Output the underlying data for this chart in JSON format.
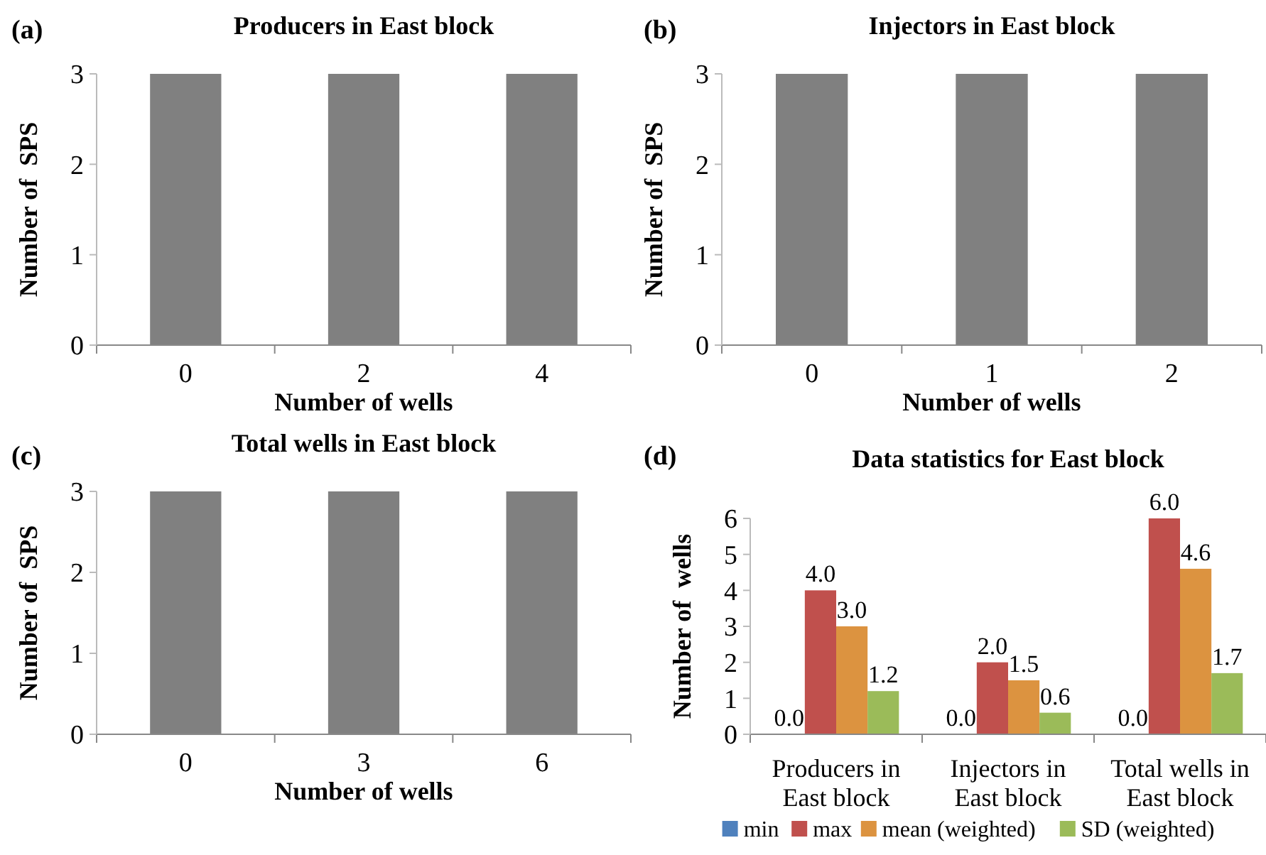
{
  "chart_data": [
    {
      "type": "bar",
      "title": "Producers in East block",
      "annotations": [
        "(a)"
      ],
      "xlabel": "Number of wells",
      "ylabel": "Number of  SPS",
      "categories": [
        "0",
        "2",
        "4"
      ],
      "values": [
        3,
        3,
        3
      ],
      "color": "#808080",
      "ylim": [
        0,
        3
      ],
      "yticks": [
        0,
        1,
        2,
        3
      ],
      "grid": false,
      "legend": false
    },
    {
      "type": "bar",
      "title": "Injectors in East block",
      "annotations": [
        "(b)"
      ],
      "xlabel": "Number of wells",
      "ylabel": "Number of  SPS",
      "categories": [
        "0",
        "1",
        "2"
      ],
      "values": [
        3,
        3,
        3
      ],
      "color": "#808080",
      "ylim": [
        0,
        3
      ],
      "yticks": [
        0,
        1,
        2,
        3
      ],
      "grid": false,
      "legend": false
    },
    {
      "type": "bar",
      "title": "Total wells in East block",
      "annotations": [
        "(c)"
      ],
      "xlabel": "Number of wells",
      "ylabel": "Number of  SPS",
      "categories": [
        "0",
        "3",
        "6"
      ],
      "values": [
        3,
        3,
        3
      ],
      "color": "#808080",
      "ylim": [
        0,
        3
      ],
      "yticks": [
        0,
        1,
        2,
        3
      ],
      "grid": false,
      "legend": false
    },
    {
      "type": "bar",
      "title": "Data statistics for East block",
      "annotations": [
        "(d)"
      ],
      "ylabel": "Number of  wells",
      "categories": [
        "Producers in East block",
        "Injectors in East block",
        "Total wells in East block"
      ],
      "ylim": [
        0,
        6
      ],
      "yticks": [
        0,
        1,
        2,
        3,
        4,
        5,
        6
      ],
      "grid": false,
      "legend": "bottom",
      "series": [
        {
          "name": "min",
          "color": "#4f81bd",
          "values": [
            0,
            0,
            0
          ],
          "value_labels": [
            "0.0",
            "0.0",
            "0.0"
          ]
        },
        {
          "name": "max",
          "color": "#c0504d",
          "values": [
            4,
            2,
            6
          ],
          "value_labels": [
            "4.0",
            "2.0",
            "6.0"
          ]
        },
        {
          "name": "mean (weighted)",
          "color": "#dc9340",
          "values": [
            3,
            1.5,
            4.6
          ],
          "value_labels": [
            "3.0",
            "1.5",
            "4.6"
          ]
        },
        {
          "name": "SD (weighted)",
          "color": "#9bbb59",
          "values": [
            1.2,
            0.6,
            1.7
          ],
          "value_labels": [
            "1.2",
            "0.6",
            "1.7"
          ]
        }
      ]
    }
  ]
}
